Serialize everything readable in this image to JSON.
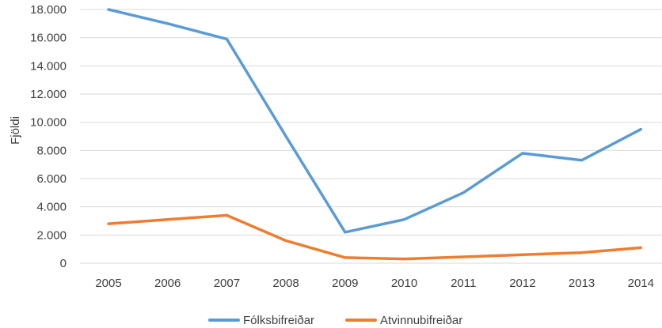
{
  "chart_data": {
    "type": "line",
    "title": "",
    "xlabel": "",
    "ylabel": "Fjöldi",
    "categories": [
      "2005",
      "2006",
      "2007",
      "2008",
      "2009",
      "2010",
      "2011",
      "2012",
      "2013",
      "2014"
    ],
    "ylim": [
      0,
      18000
    ],
    "yticks": [
      0,
      2000,
      4000,
      6000,
      8000,
      10000,
      12000,
      14000,
      16000,
      18000
    ],
    "ytick_labels": [
      "0",
      "2.000",
      "4.000",
      "6.000",
      "8.000",
      "10.000",
      "12.000",
      "14.000",
      "16.000",
      "18.000"
    ],
    "grid": true,
    "legend_position": "bottom",
    "series": [
      {
        "name": "Fólksbifreiðar",
        "color": "#5b9bd5",
        "values": [
          18000,
          17000,
          15900,
          9000,
          2200,
          3100,
          5000,
          7800,
          7300,
          9500
        ]
      },
      {
        "name": "Atvinnubifreiðar",
        "color": "#ed7d31",
        "values": [
          2800,
          3100,
          3400,
          1600,
          400,
          300,
          450,
          600,
          750,
          1100
        ]
      }
    ]
  }
}
